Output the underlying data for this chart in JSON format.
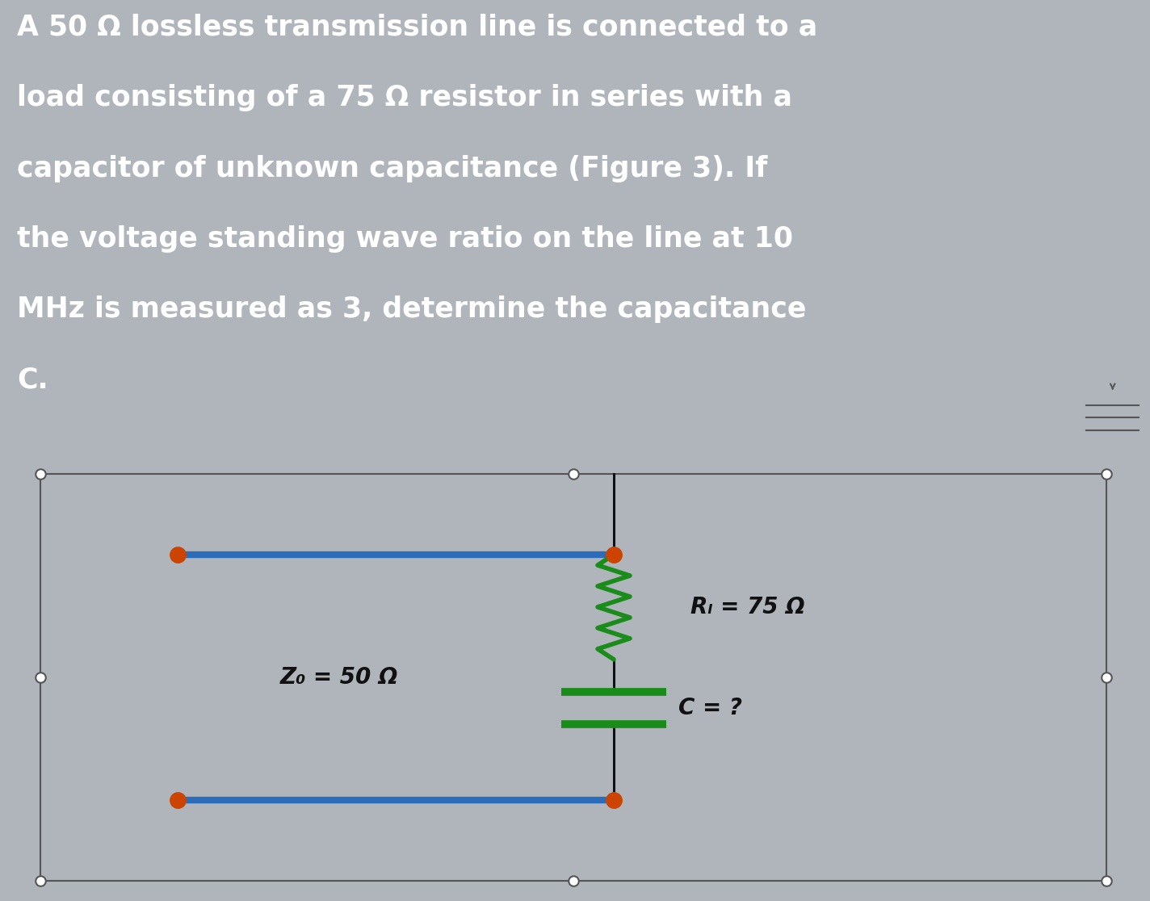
{
  "text_panel_bg": "#111111",
  "text_panel_text": "#ffffff",
  "circuit_bg": "#c8cdd4",
  "outer_bg": "#b0b5bc",
  "title_lines": [
    "A 50 Ω lossless transmission line is connected to a",
    "load consisting of a 75 Ω resistor in series with a",
    "capacitor of unknown capacitance (Figure 3). If",
    "the voltage standing wave ratio on the line at 10",
    "MHz is measured as 3, determine the capacitance",
    "C."
  ],
  "z0_label": "Z₀ = 50 Ω",
  "rl_label": "Rₗ = 75 Ω",
  "c_label": "C = ?",
  "line_color": "#2b6cbb",
  "resistor_color": "#1a8c1a",
  "capacitor_color": "#1a8c1a",
  "wire_color": "#111111",
  "node_orange": "#cc4400",
  "node_white": "#ffffff",
  "border_color": "#555555"
}
